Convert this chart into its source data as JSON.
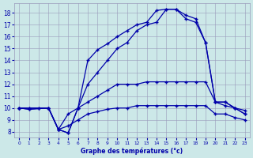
{
  "xlabel": "Graphe des températures (°c)",
  "xlim": [
    -0.5,
    23.5
  ],
  "ylim": [
    7.5,
    18.8
  ],
  "yticks": [
    8,
    9,
    10,
    11,
    12,
    13,
    14,
    15,
    16,
    17,
    18
  ],
  "xticks": [
    0,
    1,
    2,
    3,
    4,
    5,
    6,
    7,
    8,
    9,
    10,
    11,
    12,
    13,
    14,
    15,
    16,
    17,
    18,
    19,
    20,
    21,
    22,
    23
  ],
  "bg_color": "#cce8e8",
  "grid_color": "#9999bb",
  "line_color": "#0000aa",
  "line1_x": [
    0,
    1,
    3,
    4,
    5,
    6,
    7,
    8,
    9,
    10,
    11,
    12,
    13,
    14,
    15,
    16,
    17,
    18,
    19,
    20,
    21,
    22,
    23
  ],
  "line1_y": [
    10,
    9.9,
    10,
    8.2,
    7.9,
    10,
    14,
    14.9,
    15.4,
    16,
    16.5,
    17,
    17.2,
    18.2,
    18.3,
    18.3,
    17.8,
    17.5,
    15.5,
    10.5,
    10.5,
    10,
    9.5
  ],
  "line2_x": [
    0,
    1,
    3,
    4,
    5,
    6,
    7,
    8,
    9,
    10,
    11,
    12,
    13,
    14,
    15,
    16,
    17,
    18,
    19,
    20,
    21,
    22,
    23
  ],
  "line2_y": [
    10,
    9.9,
    10,
    8.2,
    7.9,
    10,
    12,
    13,
    14,
    15,
    15.5,
    16.5,
    17,
    17.2,
    18.3,
    18.3,
    17.5,
    17.2,
    15.5,
    10.5,
    10.5,
    10,
    9.5
  ],
  "line3_x": [
    0,
    1,
    2,
    3,
    4,
    5,
    6,
    7,
    8,
    9,
    10,
    11,
    12,
    13,
    14,
    15,
    16,
    17,
    18,
    19,
    20,
    21,
    22,
    23
  ],
  "line3_y": [
    10,
    10,
    10,
    10,
    8.2,
    9.5,
    10,
    10.5,
    11,
    11.5,
    12,
    12,
    12,
    12.2,
    12.2,
    12.2,
    12.2,
    12.2,
    12.2,
    12.2,
    10.5,
    10.2,
    10,
    9.8
  ],
  "line4_x": [
    0,
    1,
    2,
    3,
    4,
    5,
    6,
    7,
    8,
    9,
    10,
    11,
    12,
    13,
    14,
    15,
    16,
    17,
    18,
    19,
    20,
    21,
    22,
    23
  ],
  "line4_y": [
    10,
    10,
    10,
    10,
    8.2,
    8.5,
    9,
    9.5,
    9.7,
    9.9,
    10,
    10,
    10.2,
    10.2,
    10.2,
    10.2,
    10.2,
    10.2,
    10.2,
    10.2,
    9.5,
    9.5,
    9.2,
    9.0
  ]
}
